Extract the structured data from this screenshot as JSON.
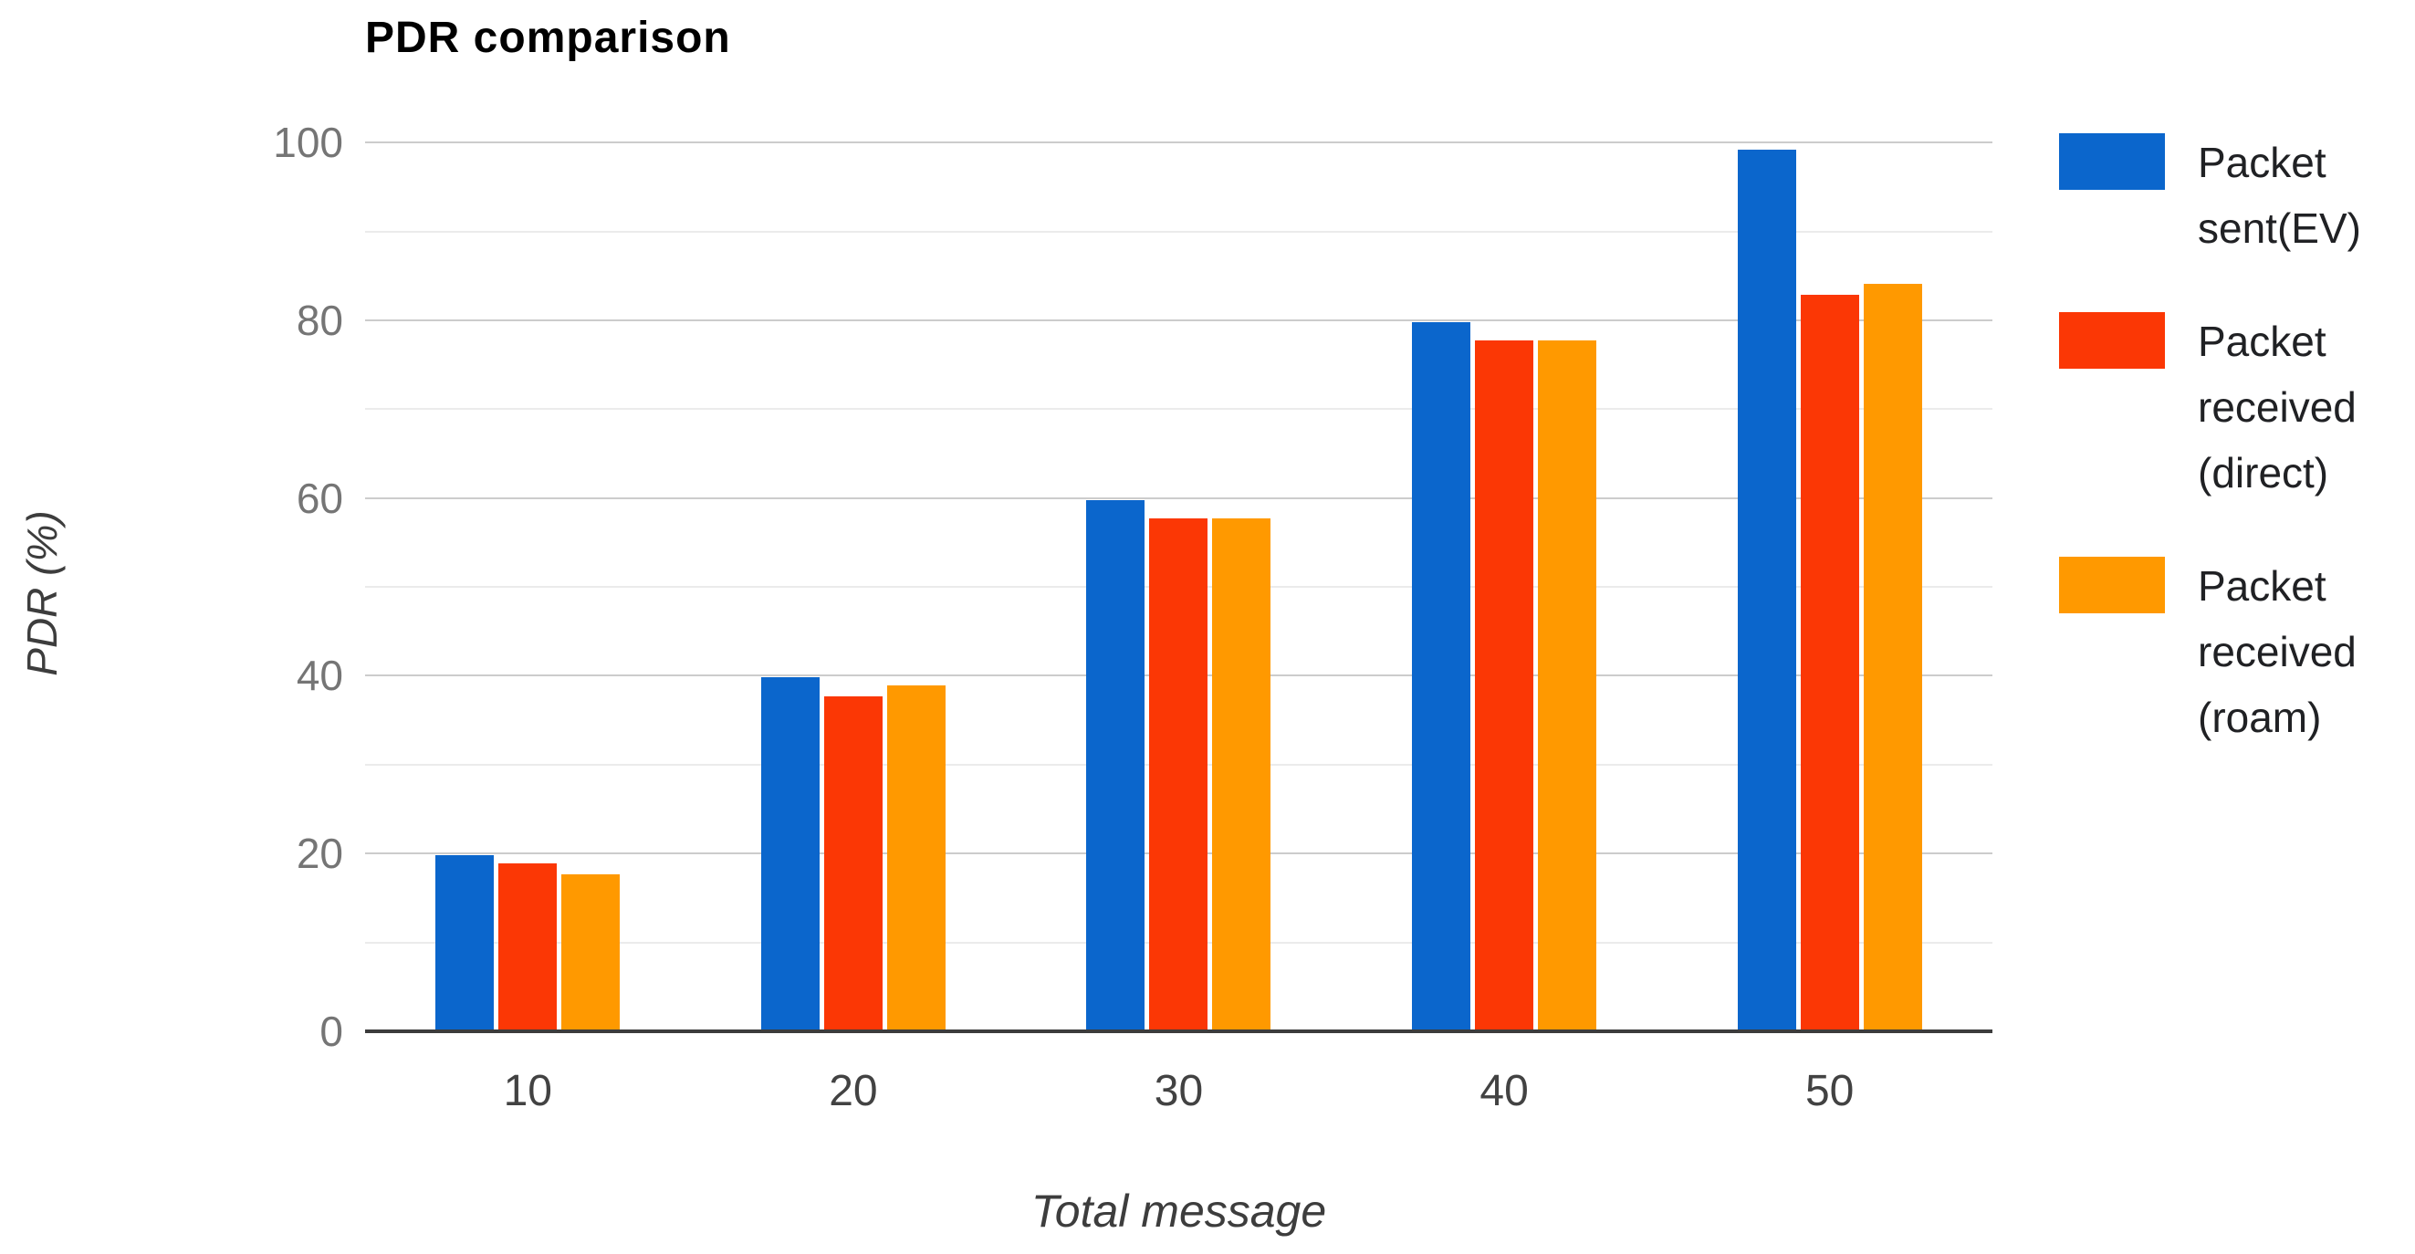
{
  "chart_data": {
    "type": "bar",
    "title": "PDR comparison",
    "xlabel": "Total message",
    "ylabel": "PDR (%)",
    "categories": [
      "10",
      "20",
      "30",
      "40",
      "50"
    ],
    "series": [
      {
        "name": "Packet sent(EV)",
        "color": "#0b66cc",
        "values": [
          19.8,
          39.8,
          59.8,
          79.8,
          99.2
        ]
      },
      {
        "name": "Packet received (direct)",
        "color": "#fb3705",
        "values": [
          18.9,
          37.7,
          57.7,
          77.7,
          82.9
        ]
      },
      {
        "name": "Packet received (roam)",
        "color": "#ff9900",
        "values": [
          17.7,
          38.9,
          57.7,
          77.7,
          84.1
        ]
      }
    ],
    "ylim": [
      0,
      107
    ],
    "yticks": [
      0,
      20,
      40,
      60,
      80,
      100
    ],
    "gridlines": {
      "minor_every": 10,
      "major_every": 20,
      "max": 100
    },
    "grid": true,
    "legend_position": "right",
    "colors": {
      "major_gridline": "#cccccc",
      "minor_gridline": "#ebebeb",
      "baseline": "#3c3c3c",
      "y_tick_text": "#757575",
      "x_tick_text": "#424242",
      "axis_title_text": "#3d3d3d",
      "title_text": "#000000"
    }
  }
}
